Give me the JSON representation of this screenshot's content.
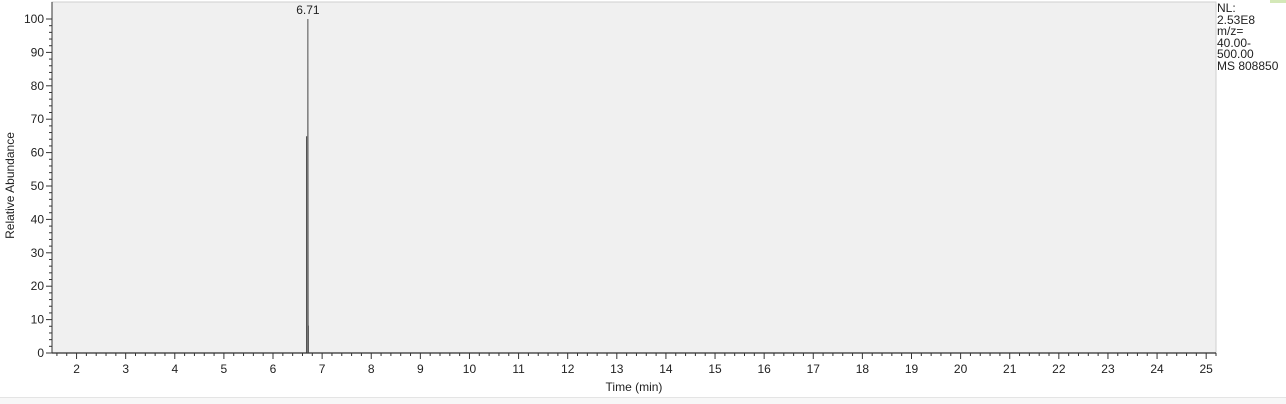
{
  "chart_data": {
    "type": "line",
    "title": "",
    "xlabel": "Time (min)",
    "ylabel": "Relative Abundance",
    "xlim": [
      1.5,
      25.2
    ],
    "ylim": [
      0,
      100
    ],
    "x_ticks": [
      2,
      3,
      4,
      5,
      6,
      7,
      8,
      9,
      10,
      11,
      12,
      13,
      14,
      15,
      16,
      17,
      18,
      19,
      20,
      21,
      22,
      23,
      24,
      25
    ],
    "y_ticks": [
      0,
      10,
      20,
      30,
      40,
      50,
      60,
      70,
      80,
      90,
      100
    ],
    "grid": false,
    "series": [
      {
        "x": [
          1.5,
          6.69,
          6.69,
          6.695,
          6.7,
          6.705,
          6.71,
          6.715,
          6.72,
          6.72,
          25.2
        ],
        "y": [
          0,
          0,
          64.7,
          64.7,
          0,
          0,
          100,
          8,
          8,
          0,
          0
        ]
      }
    ],
    "peak_labels": [
      {
        "x": 6.71,
        "y": 100,
        "label": "6.71"
      }
    ],
    "colors": {
      "plot_background": "#f0f0f0",
      "trace": "#111111",
      "peak_highlight": "#8a8a8a",
      "axis": "#333333"
    }
  },
  "info": {
    "lines": [
      "NL:",
      "2.53E8",
      "m/z=",
      "40.00-",
      "500.00",
      "MS 808850"
    ]
  }
}
